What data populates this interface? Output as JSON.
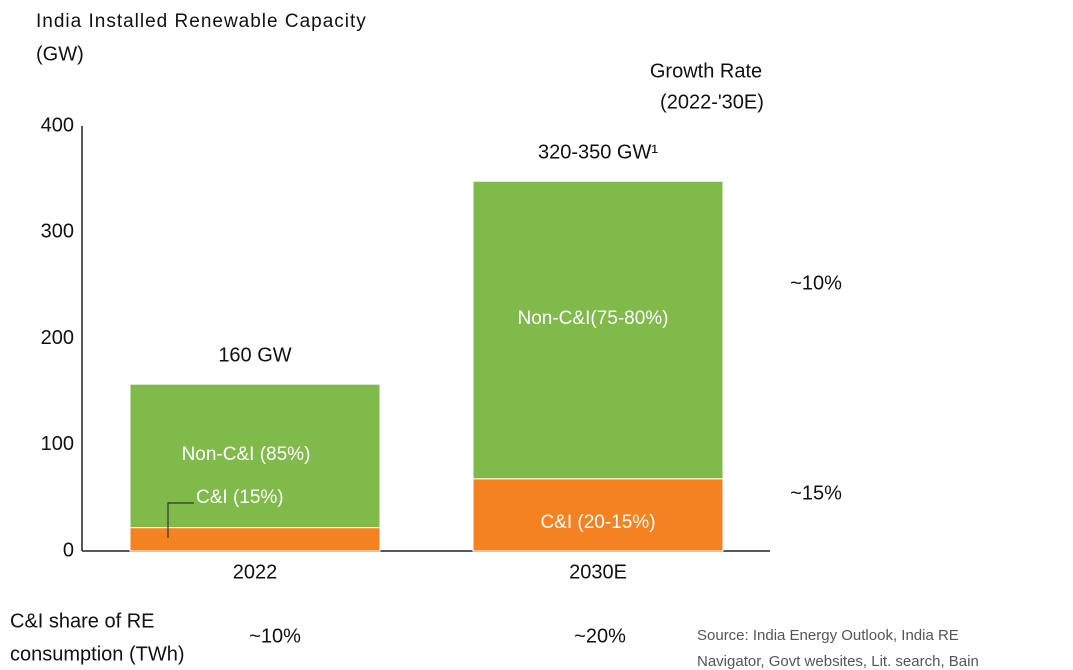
{
  "chart_data": {
    "type": "stacked_bar",
    "title": "India Installed Renewable Capacity",
    "y_label": "(GW)",
    "categories": [
      "2022",
      "2030E"
    ],
    "series": [
      {
        "color": "#f58220",
        "values": [
          22,
          68
        ]
      },
      {
        "color": "#7fba4a",
        "values": [
          135,
          280
        ]
      }
    ],
    "ylim": [
      0,
      400
    ],
    "yticks": [
      0,
      100,
      200,
      300,
      400
    ],
    "grid": false,
    "segment_labels": [
      [
        "C&I (15%)",
        "C&I (20-15%)"
      ],
      [
        "Non-C&I (85%)",
        "Non-C&I(75-80%)"
      ]
    ],
    "total_labels": [
      "160 GW",
      "320-350 GW¹"
    ],
    "growth_title": [
      "Growth Rate",
      "(2022-'30E)"
    ],
    "growth_labels": [
      "~15%",
      "~10%"
    ],
    "share_row": {
      "label": [
        "C&I share of RE",
        "consumption (TWh)"
      ],
      "values": [
        "~10%",
        "~20%"
      ]
    },
    "source": [
      "Source: India Energy Outlook, India RE",
      "Navigator, Govt websites, Lit. search, Bain"
    ]
  }
}
